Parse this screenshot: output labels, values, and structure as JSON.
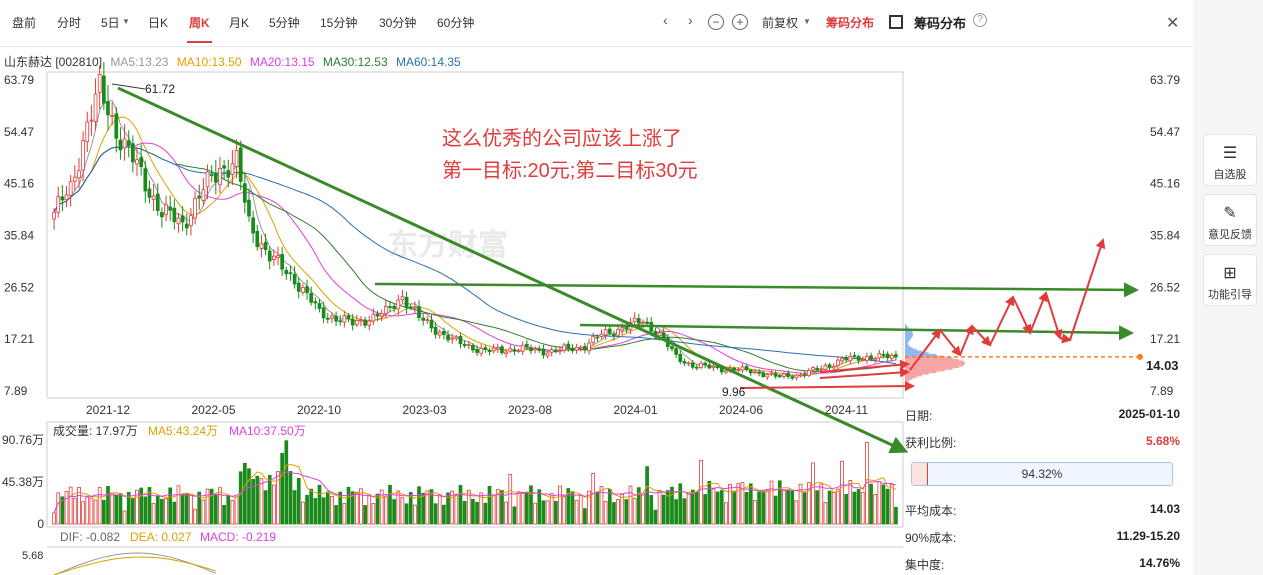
{
  "toolbar": {
    "tabs": [
      "盘前",
      "分时",
      "5日",
      "日K",
      "周K",
      "月K",
      "5分钟",
      "15分钟",
      "30分钟",
      "60分钟"
    ],
    "active_tab": "周K",
    "fq": "前复权",
    "chip_red": "筹码分布",
    "chip_panel_title": "筹码分布"
  },
  "stock": {
    "name_code": "山东赫达 [002810]"
  },
  "ma_legend": {
    "ma5": "MA5:13.23",
    "ma10": "MA10:13.50",
    "ma20": "MA20:13.15",
    "ma30": "MA30:12.53",
    "ma60": "MA60:14.35"
  },
  "annotation": {
    "line1": "这么优秀的公司应该上涨了",
    "line2": "第一目标:20元;第二目标30元"
  },
  "watermark": "东方财富",
  "colors": {
    "up": "#e03c3c",
    "down": "#1a8a1a",
    "ma5": "#999999",
    "ma10": "#e0a000",
    "ma20": "#e040e0",
    "ma30": "#2f7f2f",
    "ma60": "#2a6fb0",
    "annotation": "#e03c3c",
    "arrow_green": "#3a8a2a"
  },
  "chart_data": [
    {
      "type": "candlestick",
      "y_ticks": [
        "63.79",
        "54.47",
        "45.16",
        "35.84",
        "26.52",
        "17.21",
        "7.89"
      ],
      "ylim": [
        7.89,
        63.79
      ],
      "x_ticks": [
        "2021-12",
        "2022-05",
        "2022-10",
        "2023-03",
        "2023-08",
        "2024-01",
        "2024-06",
        "2024-11"
      ],
      "high_label": "61.72",
      "low_label": "9.96",
      "current_price": "14.03",
      "close_anchors": [
        [
          0,
          40
        ],
        [
          4,
          44
        ],
        [
          8,
          56
        ],
        [
          11,
          61.7
        ],
        [
          15,
          55
        ],
        [
          20,
          48
        ],
        [
          26,
          40
        ],
        [
          31,
          38
        ],
        [
          36,
          44
        ],
        [
          40,
          48
        ],
        [
          44,
          49
        ],
        [
          47,
          38
        ],
        [
          52,
          32
        ],
        [
          58,
          28
        ],
        [
          64,
          22
        ],
        [
          72,
          20
        ],
        [
          80,
          22
        ],
        [
          84,
          25
        ],
        [
          88,
          21
        ],
        [
          96,
          17
        ],
        [
          104,
          15
        ],
        [
          112,
          15.5
        ],
        [
          120,
          15
        ],
        [
          128,
          16
        ],
        [
          132,
          18
        ],
        [
          138,
          19.5
        ],
        [
          142,
          20.5
        ],
        [
          146,
          18
        ],
        [
          150,
          14
        ],
        [
          154,
          12.5
        ],
        [
          160,
          12
        ],
        [
          168,
          11.5
        ],
        [
          174,
          10.5
        ],
        [
          180,
          10.8
        ],
        [
          185,
          12
        ],
        [
          190,
          13.5
        ],
        [
          196,
          14
        ],
        [
          203,
          14.03
        ]
      ]
    },
    {
      "type": "bar",
      "name": "成交量",
      "current": "成交量: 17.97万",
      "ma5": "MA5:43.24万",
      "ma10": "MA10:37.50万",
      "y_ticks": [
        "90.76万",
        "45.38万",
        "0"
      ],
      "ylim": [
        0,
        90.76
      ]
    },
    {
      "type": "line",
      "name": "MACD",
      "dif": "DIF: -0.082",
      "dea": "DEA: 0.027",
      "macd": "MACD: -0.219",
      "y_ticks": [
        "5.68"
      ]
    }
  ],
  "chip_info": {
    "date_label": "日期:",
    "date": "2025-01-10",
    "profit_label": "获利比例:",
    "profit": "5.68%",
    "bar_value": "94.32%",
    "bar_fill": 0.0568,
    "avg_label": "平均成本:",
    "avg": "14.03",
    "range_label": "90%成本:",
    "range": "11.29-15.20",
    "conc_label": "集中度:",
    "conc": "14.76%"
  },
  "sidebar": [
    {
      "label": "自选股",
      "icon": "list-icon"
    },
    {
      "label": "意见反馈",
      "icon": "feedback-icon"
    },
    {
      "label": "功能引导",
      "icon": "grid-icon"
    }
  ]
}
